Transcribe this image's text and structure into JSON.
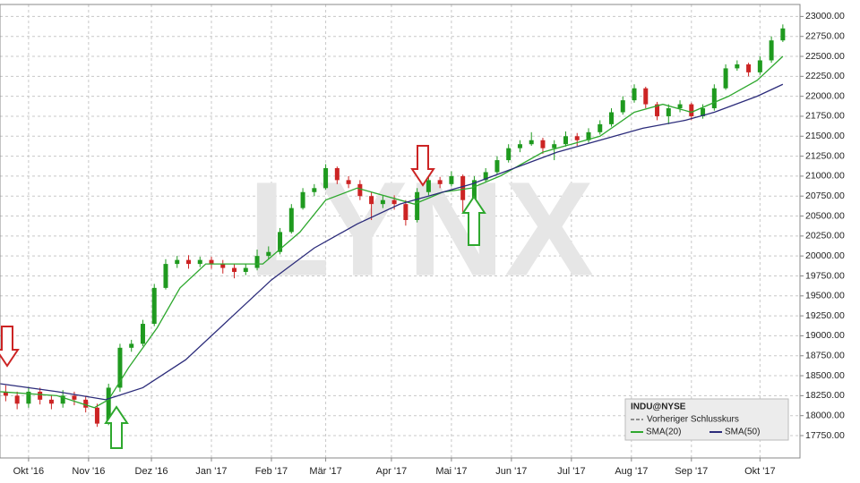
{
  "chart_data": {
    "type": "candlestick",
    "watermark": "LYNX",
    "legend_title": "INDU@NYSE",
    "reference_label": "Vorheriger Schlusskurs",
    "up_color": "#1f9a1f",
    "down_color": "#cc2424",
    "grid": true,
    "legend_position": "lower right",
    "xlim": [
      0,
      280
    ],
    "xticks": [
      {
        "value": 10,
        "label": "Okt '16"
      },
      {
        "value": 31,
        "label": "Nov '16"
      },
      {
        "value": 53,
        "label": "Dez '16"
      },
      {
        "value": 74,
        "label": "Jan '17"
      },
      {
        "value": 95,
        "label": "Feb '17"
      },
      {
        "value": 114,
        "label": "Mär '17"
      },
      {
        "value": 137,
        "label": "Apr '17"
      },
      {
        "value": 158,
        "label": "Mai '17"
      },
      {
        "value": 179,
        "label": "Jun '17"
      },
      {
        "value": 200,
        "label": "Jul '17"
      },
      {
        "value": 221,
        "label": "Aug '17"
      },
      {
        "value": 242,
        "label": "Sep '17"
      },
      {
        "value": 266,
        "label": "Okt '17"
      }
    ],
    "ylim": [
      17470,
      23150
    ],
    "yticks": [
      {
        "value": 17750,
        "label": "17750.00"
      },
      {
        "value": 18000,
        "label": "18000.00"
      },
      {
        "value": 18250,
        "label": "18250.00"
      },
      {
        "value": 18500,
        "label": "18500.00"
      },
      {
        "value": 18750,
        "label": "18750.00"
      },
      {
        "value": 19000,
        "label": "19000.00"
      },
      {
        "value": 19250,
        "label": "19250.00"
      },
      {
        "value": 19500,
        "label": "19500.00"
      },
      {
        "value": 19750,
        "label": "19750.00"
      },
      {
        "value": 20000,
        "label": "20000.00"
      },
      {
        "value": 20250,
        "label": "20250.00"
      },
      {
        "value": 20500,
        "label": "20500.00"
      },
      {
        "value": 20750,
        "label": "20750.00"
      },
      {
        "value": 21000,
        "label": "21000.00"
      },
      {
        "value": 21250,
        "label": "21250.00"
      },
      {
        "value": 21500,
        "label": "21500.00"
      },
      {
        "value": 21750,
        "label": "21750.00"
      },
      {
        "value": 22000,
        "label": "22000.00"
      },
      {
        "value": 22250,
        "label": "22250.00"
      },
      {
        "value": 22500,
        "label": "22500.00"
      },
      {
        "value": 22750,
        "label": "22750.00"
      },
      {
        "value": 23000,
        "label": "23000.00"
      }
    ],
    "candles": {
      "x": [
        2,
        6,
        10,
        14,
        18,
        22,
        26,
        30,
        34,
        38,
        42,
        46,
        50,
        54,
        58,
        62,
        66,
        70,
        74,
        78,
        82,
        86,
        90,
        94,
        98,
        102,
        106,
        110,
        114,
        118,
        122,
        126,
        130,
        134,
        138,
        142,
        146,
        150,
        154,
        158,
        162,
        166,
        170,
        174,
        178,
        182,
        186,
        190,
        194,
        198,
        202,
        206,
        210,
        214,
        218,
        222,
        226,
        230,
        234,
        238,
        242,
        246,
        250,
        254,
        258,
        262,
        266,
        270,
        274
      ],
      "open": [
        18300,
        18250,
        18150,
        18300,
        18200,
        18150,
        18250,
        18200,
        18100,
        17900,
        18350,
        18850,
        18900,
        19150,
        19600,
        19900,
        19950,
        19900,
        19950,
        19900,
        19850,
        19800,
        19850,
        20000,
        20050,
        20300,
        20600,
        20800,
        20850,
        21100,
        20950,
        20900,
        20750,
        20650,
        20700,
        20650,
        20450,
        20800,
        20950,
        20900,
        21000,
        20700,
        20950,
        21050,
        21200,
        21350,
        21400,
        21450,
        21350,
        21400,
        21500,
        21450,
        21550,
        21650,
        21800,
        21950,
        22100,
        21900,
        21750,
        21850,
        21900,
        21750,
        21850,
        22100,
        22350,
        22400,
        22300,
        22450,
        22700
      ],
      "high": [
        18380,
        18300,
        18360,
        18350,
        18260,
        18320,
        18300,
        18250,
        18150,
        18400,
        18900,
        18950,
        19200,
        19650,
        19960,
        20000,
        20010,
        19990,
        19990,
        19950,
        19900,
        19900,
        20080,
        20120,
        20350,
        20650,
        20850,
        20900,
        21150,
        21120,
        21000,
        20950,
        20800,
        20760,
        20760,
        20700,
        20850,
        21000,
        20990,
        21060,
        21020,
        21000,
        21100,
        21250,
        21400,
        21450,
        21550,
        21480,
        21450,
        21560,
        21540,
        21600,
        21700,
        21850,
        22000,
        22150,
        22120,
        21930,
        21900,
        21950,
        21920,
        21900,
        22150,
        22400,
        22450,
        22420,
        22500,
        22750,
        22900
      ],
      "low": [
        18180,
        18080,
        18100,
        18140,
        18080,
        18100,
        18130,
        18040,
        17860,
        17880,
        18300,
        18800,
        18870,
        19120,
        19580,
        19850,
        19840,
        19860,
        19840,
        19780,
        19720,
        19760,
        19820,
        19960,
        20020,
        20280,
        20580,
        20750,
        20830,
        20900,
        20850,
        20700,
        20450,
        20600,
        20580,
        20380,
        20420,
        20760,
        20850,
        20870,
        20550,
        20650,
        20920,
        21020,
        21170,
        21300,
        21380,
        21280,
        21200,
        21370,
        21380,
        21420,
        21520,
        21620,
        21770,
        21920,
        21850,
        21700,
        21650,
        21800,
        21700,
        21720,
        21820,
        22080,
        22320,
        22250,
        22270,
        22420,
        22680
      ],
      "close": [
        18250,
        18150,
        18300,
        18200,
        18150,
        18250,
        18200,
        18100,
        17900,
        18350,
        18850,
        18900,
        19150,
        19600,
        19900,
        19950,
        19900,
        19950,
        19900,
        19850,
        19800,
        19850,
        20000,
        20050,
        20300,
        20600,
        20800,
        20850,
        21100,
        20950,
        20900,
        20750,
        20650,
        20700,
        20650,
        20450,
        20800,
        20950,
        20900,
        21000,
        20700,
        20950,
        21050,
        21200,
        21350,
        21400,
        21450,
        21350,
        21400,
        21500,
        21450,
        21550,
        21650,
        21800,
        21950,
        22100,
        21900,
        21750,
        21850,
        21900,
        21750,
        21850,
        22100,
        22350,
        22400,
        22300,
        22450,
        22700,
        22850
      ]
    },
    "series": [
      {
        "name": "SMA(20)",
        "color": "#2ea82e",
        "x": [
          0,
          20,
          33,
          38,
          45,
          55,
          63,
          72,
          85,
          92,
          105,
          114,
          125,
          140,
          145,
          155,
          165,
          175,
          190,
          200,
          210,
          222,
          232,
          242,
          255,
          265,
          274
        ],
        "values": [
          18300,
          18250,
          18100,
          18200,
          18600,
          19100,
          19600,
          19900,
          19900,
          19900,
          20300,
          20700,
          20850,
          20700,
          20650,
          20800,
          20850,
          21000,
          21300,
          21400,
          21500,
          21800,
          21900,
          21800,
          22000,
          22200,
          22500
        ]
      },
      {
        "name": "SMA(50)",
        "color": "#2b2b7a",
        "x": [
          0,
          20,
          37,
          50,
          65,
          80,
          95,
          110,
          125,
          140,
          155,
          165,
          180,
          195,
          210,
          225,
          240,
          250,
          265,
          274
        ],
        "values": [
          18400,
          18300,
          18200,
          18350,
          18700,
          19200,
          19700,
          20100,
          20400,
          20650,
          20800,
          20900,
          21100,
          21300,
          21450,
          21600,
          21700,
          21800,
          22000,
          22150
        ]
      }
    ]
  }
}
